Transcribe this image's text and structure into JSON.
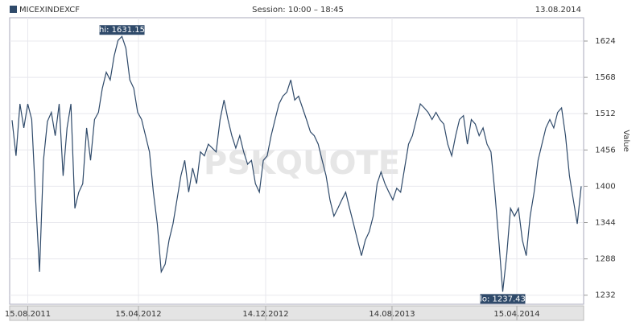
{
  "chart_data": {
    "type": "line",
    "title": "MICEXINDEXCF",
    "subtitle": "Session: 10:00 – 18:45",
    "date": "13.08.2014",
    "watermark": "PSKQUOTE",
    "y_label": "Value",
    "series": [
      {
        "name": "MICEXINDEXCF",
        "color": "#2f4a6a",
        "values": [
          1502,
          1447,
          1527,
          1490,
          1527,
          1503,
          1379,
          1268,
          1440,
          1500,
          1514,
          1478,
          1527,
          1416,
          1490,
          1527,
          1366,
          1391,
          1404,
          1490,
          1440,
          1503,
          1514,
          1551,
          1576,
          1564,
          1601,
          1625,
          1631.15,
          1613,
          1564,
          1551,
          1514,
          1503,
          1478,
          1453,
          1391,
          1342,
          1268,
          1280,
          1317,
          1342,
          1379,
          1416,
          1440,
          1391,
          1428,
          1404,
          1453,
          1447,
          1465,
          1459,
          1453,
          1503,
          1533,
          1503,
          1478,
          1459,
          1478,
          1453,
          1434,
          1440,
          1404,
          1391,
          1440,
          1447,
          1478,
          1503,
          1527,
          1539,
          1545,
          1564,
          1533,
          1539,
          1521,
          1503,
          1484,
          1478,
          1465,
          1440,
          1416,
          1379,
          1354,
          1366,
          1379,
          1391,
          1366,
          1342,
          1317,
          1293,
          1317,
          1330,
          1354,
          1404,
          1422,
          1404,
          1391,
          1379,
          1397,
          1391,
          1428,
          1465,
          1478,
          1503,
          1527,
          1521,
          1514,
          1503,
          1514,
          1503,
          1496,
          1465,
          1447,
          1478,
          1503,
          1509,
          1465,
          1503,
          1496,
          1478,
          1490,
          1465,
          1453,
          1391,
          1317,
          1237.43,
          1293,
          1366,
          1354,
          1366,
          1317,
          1293,
          1354,
          1391,
          1440,
          1465,
          1490,
          1503,
          1490,
          1514,
          1521,
          1478,
          1416,
          1379,
          1342,
          1400
        ]
      }
    ],
    "annotations": [
      {
        "label": "hi: 1631.15",
        "value": 1631.15,
        "x": 28
      },
      {
        "label": "lo: 1237.43",
        "value": 1237.43,
        "x": 125
      }
    ],
    "xlim": [
      0,
      145
    ],
    "xticks": [
      {
        "value": 4,
        "label": "15.08.2011"
      },
      {
        "value": 32.2,
        "label": "15.04.2012"
      },
      {
        "value": 64.6,
        "label": "14.12.2012"
      },
      {
        "value": 96.8,
        "label": "14.08.2013"
      },
      {
        "value": 128.6,
        "label": "15.04.2014"
      }
    ],
    "ylim": [
      1218,
      1660
    ],
    "yticks": [
      1232,
      1288,
      1344,
      1400,
      1456,
      1512,
      1568,
      1624
    ],
    "grid": true
  }
}
